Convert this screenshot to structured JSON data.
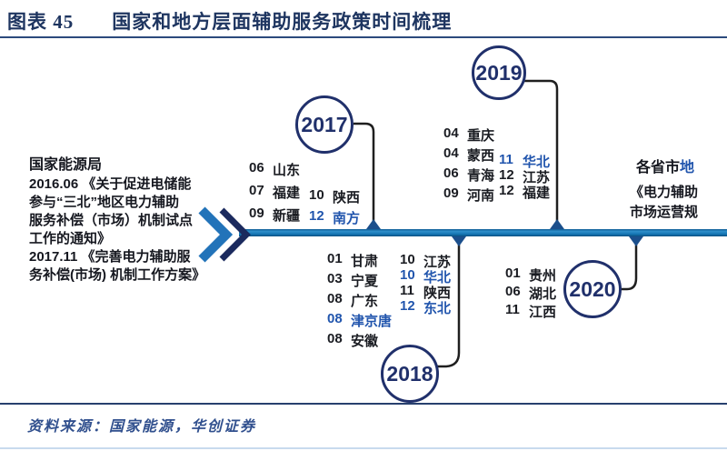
{
  "header": {
    "figure_label": "图表 45",
    "title": "国家和地方层面辅助服务政策时间梳理"
  },
  "national": {
    "agency": "国家能源局",
    "policies": [
      {
        "lines": [
          "2016.06 《关于促进电储能",
          "参与“三北”地区电力辅助",
          "服务补偿（市场）机制试点",
          "工作的通知》"
        ]
      },
      {
        "lines": [
          "2017.11 《完善电力辅助服",
          "务补偿(市场) 机制工作方案》"
        ]
      }
    ]
  },
  "timeline": {
    "years": [
      {
        "year": "2017",
        "side": "above",
        "columns": [
          [
            {
              "m": "06",
              "name": "山东",
              "hl": false
            },
            {
              "m": "07",
              "name": "福建",
              "hl": false
            },
            {
              "m": "09",
              "name": "新疆",
              "hl": false
            }
          ],
          [
            {
              "m": "10",
              "name": "陕西",
              "hl": false
            },
            {
              "m": "12",
              "name": "南方",
              "hl": true
            }
          ]
        ]
      },
      {
        "year": "2018",
        "side": "below",
        "columns": [
          [
            {
              "m": "01",
              "name": "甘肃",
              "hl": false
            },
            {
              "m": "03",
              "name": "宁夏",
              "hl": false
            },
            {
              "m": "08",
              "name": "广东",
              "hl": false
            },
            {
              "m": "08",
              "name": "津京唐",
              "hl": true
            },
            {
              "m": "08",
              "name": "安徽",
              "hl": false
            }
          ],
          [
            {
              "m": "10",
              "name": "江苏",
              "hl": false
            },
            {
              "m": "10",
              "name": "华北",
              "hl": true
            },
            {
              "m": "11",
              "name": "陕西",
              "hl": false
            },
            {
              "m": "12",
              "name": "东北",
              "hl": true
            }
          ]
        ]
      },
      {
        "year": "2019",
        "side": "above",
        "columns": [
          [
            {
              "m": "04",
              "name": "重庆",
              "hl": false
            },
            {
              "m": "04",
              "name": "蒙西",
              "hl": false
            },
            {
              "m": "06",
              "name": "青海",
              "hl": false
            },
            {
              "m": "09",
              "name": "河南",
              "hl": false
            }
          ],
          [
            {
              "m": "11",
              "name": "华北",
              "hl": true
            },
            {
              "m": "12",
              "name": "江苏",
              "hl": false
            },
            {
              "m": "12",
              "name": "福建",
              "hl": false
            }
          ]
        ]
      },
      {
        "year": "2020",
        "side": "below",
        "columns": [
          [
            {
              "m": "01",
              "name": "贵州",
              "hl": false
            },
            {
              "m": "06",
              "name": "湖北",
              "hl": false
            },
            {
              "m": "11",
              "name": "江西",
              "hl": false
            }
          ]
        ]
      }
    ]
  },
  "regional": {
    "title_dark": "各省市",
    "title_blue": "地",
    "lines": [
      "《电力辅助",
      "市场运营规"
    ]
  },
  "source": "资料来源：国家能源，华创证券",
  "colors": {
    "navy": "#20306b",
    "title_navy": "#1e3560",
    "highlight_blue": "#2155ad",
    "bar_blue": "#1878b8",
    "chevron_light": "#2273b9",
    "chevron_dark": "#1b2a5e",
    "rule_navy": "#27406e",
    "source_blue": "#31508e"
  }
}
